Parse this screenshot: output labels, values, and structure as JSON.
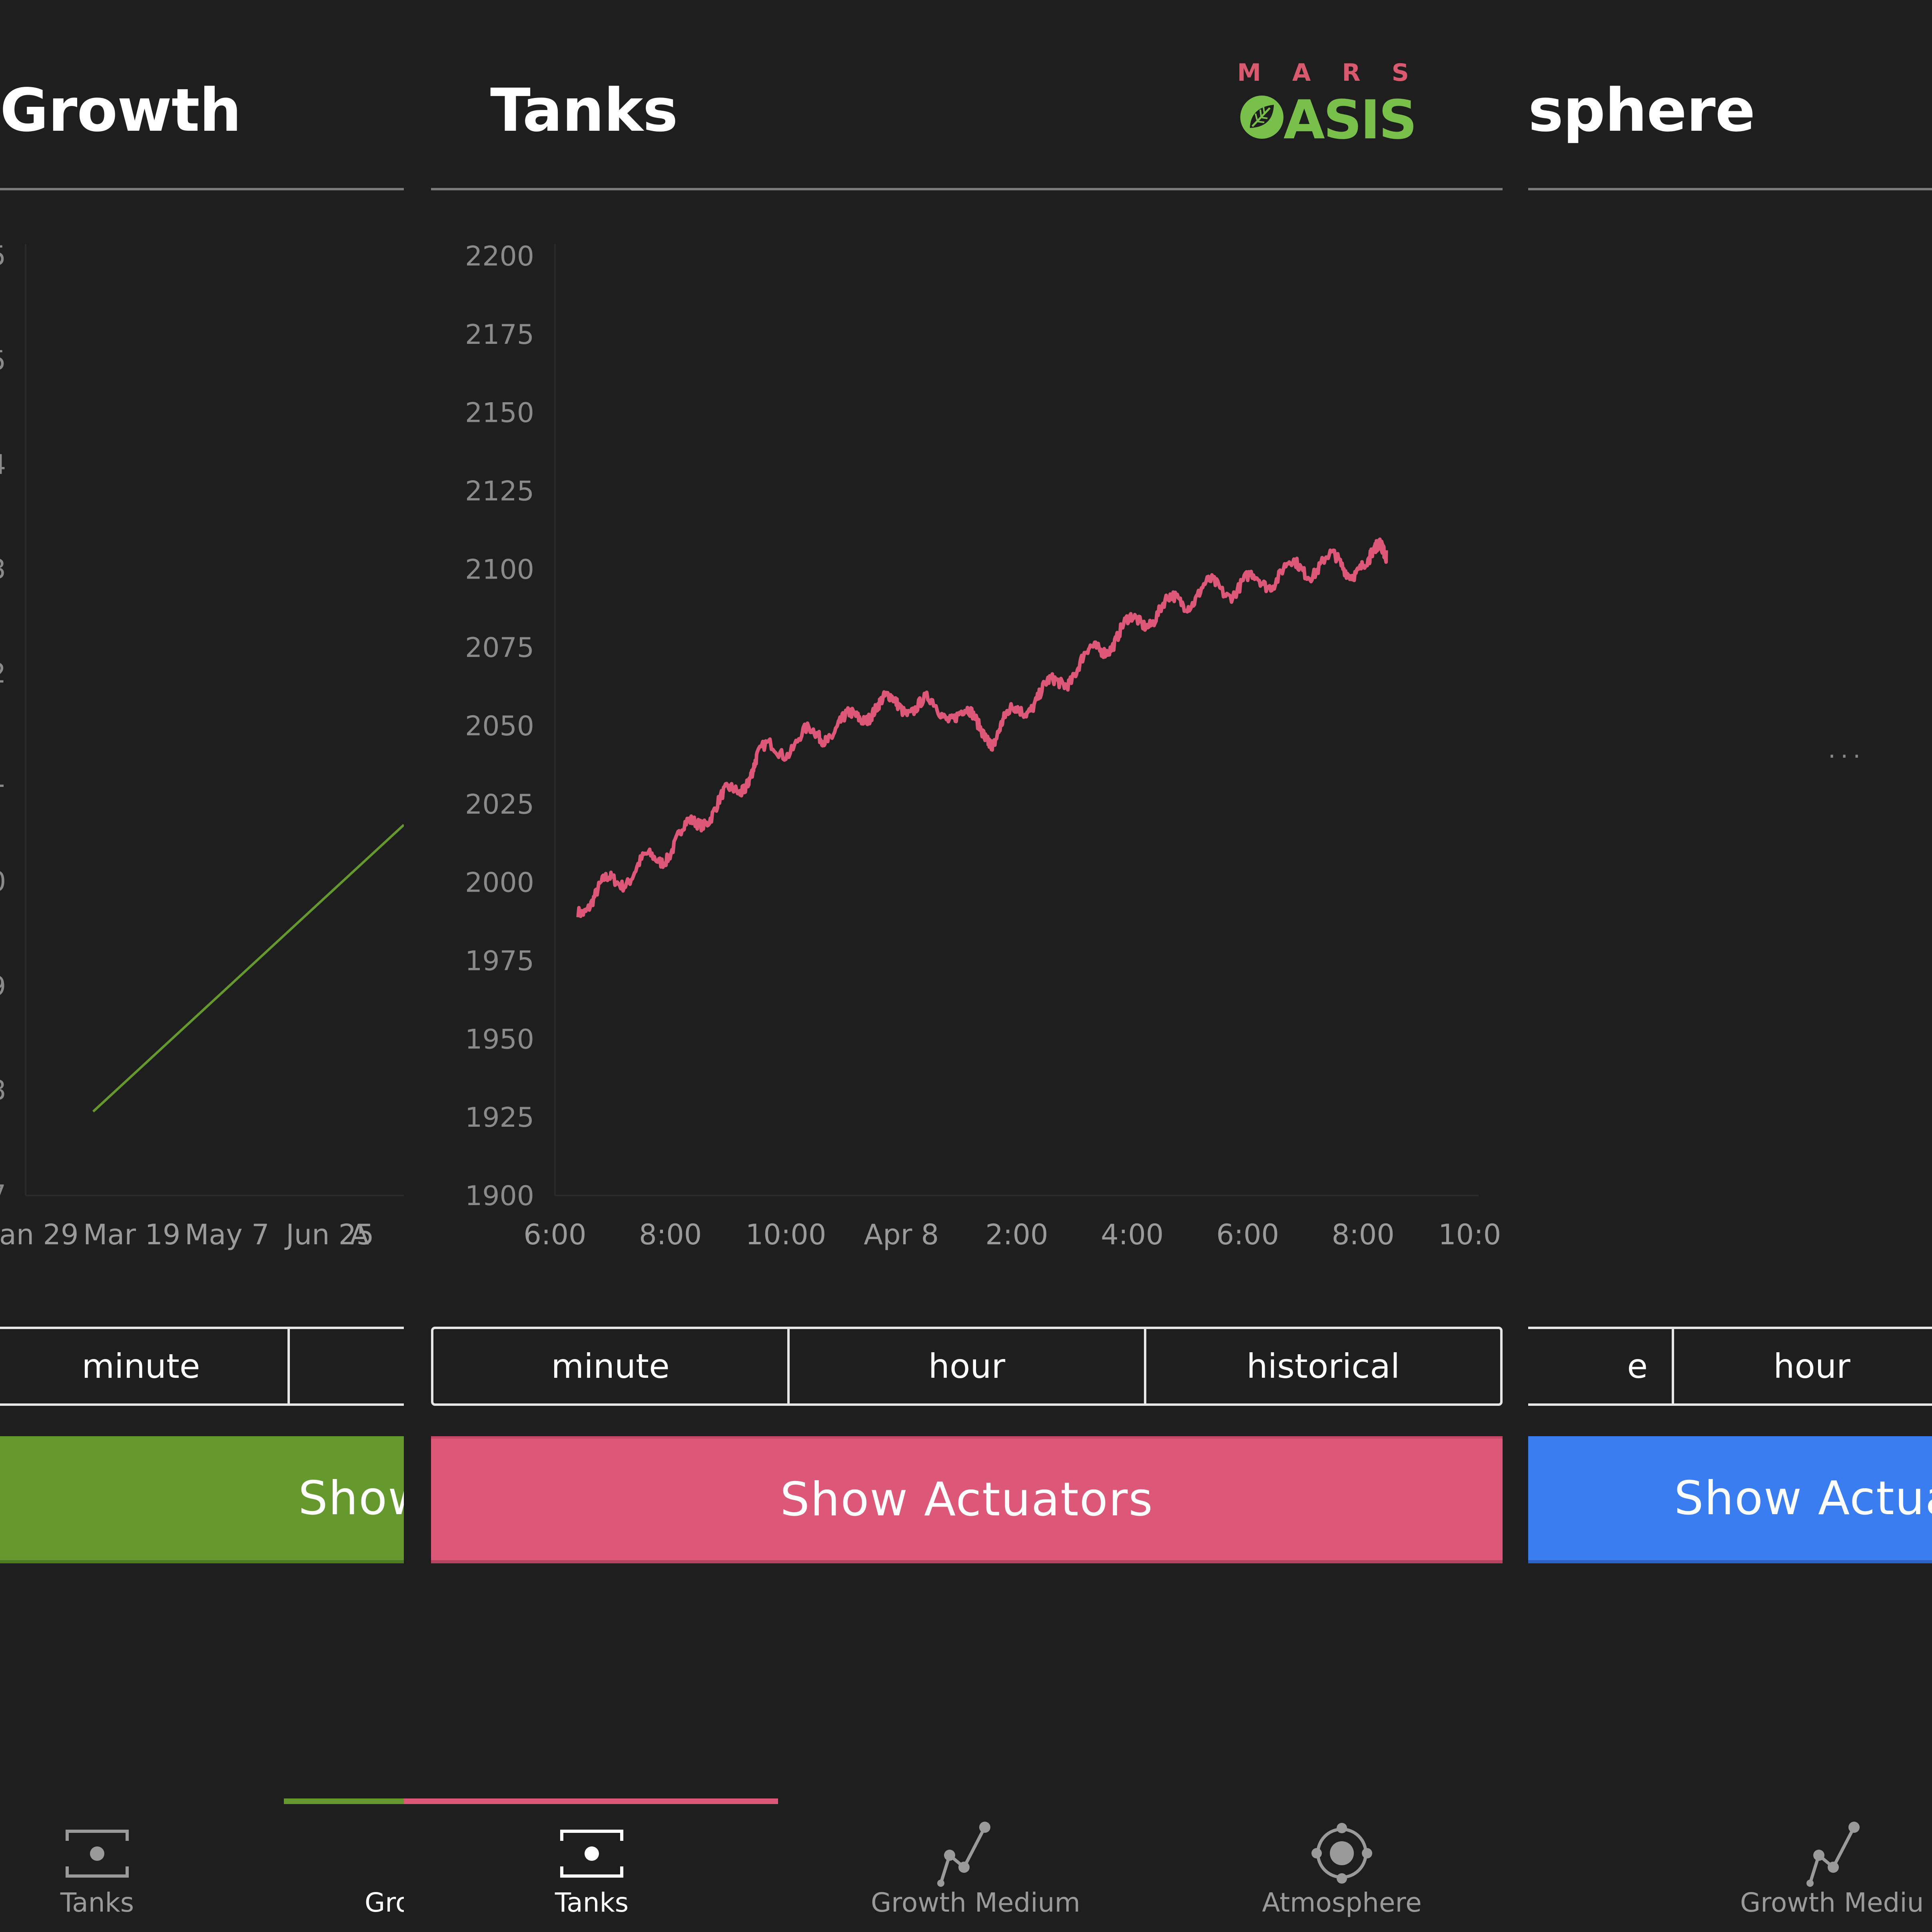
{
  "panels": {
    "left": {
      "title": "Growth",
      "accent": "#65992e",
      "x_ticks": [
        "an 29",
        "Mar 19",
        "May 7",
        "Jun 25",
        "A"
      ],
      "segments": [
        "minute",
        ""
      ],
      "button": "Show"
    },
    "center": {
      "title": "Tanks",
      "accent": "#dd5878",
      "segments": [
        "minute",
        "hour",
        "historical"
      ],
      "button": "Show Actuators"
    },
    "right": {
      "title": "sphere",
      "accent": "#3a7df0",
      "loading": "...",
      "segments": [
        "e",
        "hour"
      ],
      "button": "Show Actua"
    }
  },
  "logo": {
    "top": "MARS",
    "bottom": "OASIS",
    "top_color": "#d9596f",
    "bottom_color": "#79c04a"
  },
  "chart_data": {
    "type": "line",
    "title": "",
    "xlabel": "",
    "ylabel": "",
    "ylim": [
      1900,
      2200
    ],
    "yticks": [
      2200,
      2175,
      2150,
      2125,
      2100,
      2075,
      2050,
      2025,
      2000,
      1975,
      1950,
      1925,
      1900
    ],
    "x_tick_labels": [
      "6:00",
      "8:00",
      "10:00",
      "Apr 8",
      "2:00",
      "4:00",
      "6:00",
      "8:00",
      "10:00"
    ],
    "x_unit": "hours",
    "xlim": [
      0,
      16
    ],
    "color": "#dd5878",
    "series": [
      {
        "name": "",
        "x": [
          0.4,
          1.0,
          1.8,
          2.5,
          3.2,
          3.5,
          4.5,
          5.0,
          5.5,
          6.0,
          6.8,
          7.4,
          7.6,
          8.0,
          8.6,
          9.2,
          9.8,
          10.5,
          11.2,
          12.0,
          12.8,
          13.5,
          14.1,
          14.3,
          14.4
        ],
        "y": [
          1992,
          2000,
          2008,
          2020,
          2030,
          2040,
          2047,
          2050,
          2056,
          2057,
          2055,
          2050,
          2046,
          2055,
          2062,
          2071,
          2080,
          2087,
          2093,
          2095,
          2100,
          2102,
          2100,
          2108,
          2106
        ]
      }
    ],
    "left_panel_line": {
      "color": "#65992e"
    }
  },
  "nav": {
    "tabs": [
      {
        "label": "Tanks",
        "icon": "tank-icon",
        "active": false
      },
      {
        "label": "Gro",
        "icon": "",
        "active": false
      },
      {
        "label": "Tanks",
        "icon": "tank-icon",
        "active": true
      },
      {
        "label": "Growth Medium",
        "icon": "growth-medium-icon",
        "active": false
      },
      {
        "label": "Atmosphere",
        "icon": "atmosphere-icon",
        "active": false
      },
      {
        "label": "Growth Mediu",
        "icon": "growth-medium-icon",
        "active": false
      }
    ],
    "indicator_colors": [
      "#65992e",
      "#dd5878"
    ]
  }
}
